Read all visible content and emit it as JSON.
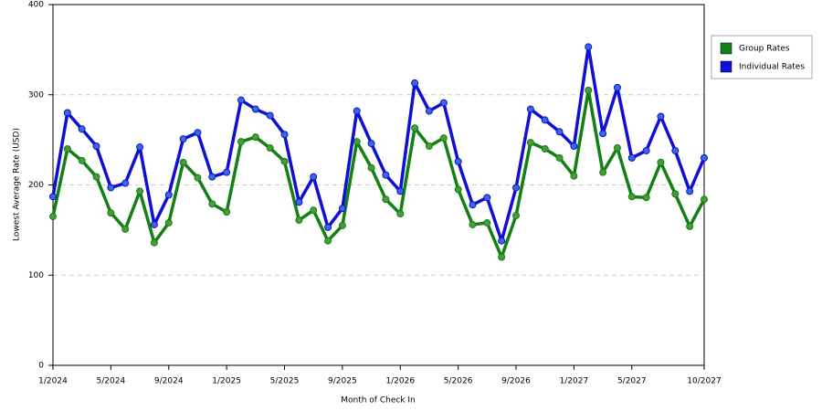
{
  "chart_data": {
    "type": "line",
    "x_label": "Month of Check In",
    "y_label": "Lowest Average Rate (USD)",
    "categories": [
      "1/2024",
      null,
      null,
      null,
      "5/2024",
      null,
      null,
      null,
      "9/2024",
      null,
      null,
      null,
      "1/2025",
      null,
      null,
      null,
      "5/2025",
      null,
      null,
      null,
      "9/2025",
      null,
      null,
      null,
      "1/2026",
      null,
      null,
      null,
      "5/2026",
      null,
      null,
      null,
      "9/2026",
      null,
      null,
      null,
      "1/2027",
      null,
      null,
      null,
      "5/2027",
      null,
      null,
      null,
      null,
      "10/2027"
    ],
    "series": [
      {
        "name": "Group Rates",
        "color": "#138013",
        "marker_color": "#4a9a3a",
        "values": [
          165,
          240,
          227,
          209,
          169,
          151,
          193,
          136,
          158,
          225,
          208,
          179,
          170,
          248,
          253,
          241,
          226,
          161,
          172,
          138,
          155,
          248,
          219,
          184,
          168,
          263,
          243,
          252,
          195,
          156,
          158,
          120,
          166,
          247,
          240,
          230,
          210,
          305,
          214,
          241,
          187,
          186,
          225,
          190,
          154,
          184
        ]
      },
      {
        "name": "Individual Rates",
        "color": "#0f0fd6",
        "marker_color": "#3a6ad8",
        "values": [
          187,
          280,
          262,
          243,
          197,
          202,
          242,
          156,
          189,
          251,
          258,
          209,
          214,
          294,
          284,
          277,
          256,
          181,
          209,
          153,
          174,
          282,
          246,
          211,
          193,
          313,
          282,
          291,
          226,
          178,
          186,
          138,
          197,
          284,
          272,
          259,
          243,
          353,
          257,
          308,
          230,
          238,
          276,
          238,
          193,
          230
        ]
      }
    ],
    "ylim": [
      0,
      400
    ],
    "yticks": [
      0,
      100,
      200,
      300,
      400
    ],
    "grid": true,
    "legend": "right"
  }
}
